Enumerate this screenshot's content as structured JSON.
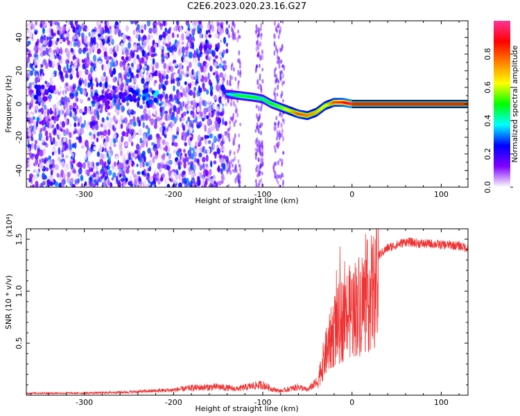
{
  "title": "C2E6.2023.020.23.16.G27",
  "chart_data": [
    {
      "type": "heatmap",
      "xlabel": "Height of straight line (km)",
      "ylabel": "Frequency (Hz)",
      "xlim": [
        -365,
        130
      ],
      "ylim": [
        -50,
        50
      ],
      "x_ticks": [
        -300,
        -200,
        -100,
        0,
        100
      ],
      "y_ticks": [
        -40,
        -20,
        0,
        20,
        40
      ],
      "colorbar": {
        "label": "Normalized spectral amplitude",
        "range": [
          0.0,
          1.0
        ],
        "ticks": [
          "0.0",
          "0.2",
          "0.4",
          "0.6",
          "0.8"
        ],
        "colors": [
          "#ffffff",
          "#8000ff",
          "#0000ff",
          "#00ffff",
          "#00ff00",
          "#ffff00",
          "#ff8000",
          "#ff0000",
          "#ff3399"
        ]
      },
      "noise_region_x": [
        -365,
        -140
      ],
      "ridge": {
        "x": [
          -140,
          -125,
          -110,
          -100,
          -90,
          -80,
          -70,
          -60,
          -50,
          -40,
          -30,
          -20,
          -10,
          0,
          130
        ],
        "y": [
          6,
          5,
          4,
          3,
          0,
          -2,
          -4,
          -6,
          -7,
          -5,
          -1,
          1,
          1,
          0,
          0
        ],
        "amplitude": [
          0.35,
          0.5,
          0.5,
          0.45,
          0.5,
          0.55,
          0.65,
          0.8,
          0.75,
          0.7,
          0.6,
          0.8,
          0.85,
          0.95,
          0.95
        ]
      },
      "grid": false
    },
    {
      "type": "line",
      "xlabel": "Height of straight line (km)",
      "ylabel": "SNR (10 * v/v)",
      "multiplier": "(x10⁴)",
      "xlim": [
        -365,
        130
      ],
      "ylim": [
        0,
        1.6
      ],
      "x_ticks": [
        -300,
        -200,
        -100,
        0,
        100
      ],
      "y_ticks": [
        "0.5",
        "1.0",
        "1.5"
      ],
      "line_color": "#ee3333",
      "series": [
        {
          "x": [
            -365,
            -300,
            -250,
            -200,
            -180,
            -150,
            -130,
            -110,
            -100,
            -90,
            -80,
            -60,
            -50,
            -40,
            -30,
            -20,
            -10,
            0,
            10,
            20,
            30,
            40,
            50,
            60,
            70,
            80,
            90,
            100,
            110,
            120,
            130
          ],
          "y": [
            0.02,
            0.02,
            0.03,
            0.05,
            0.07,
            0.08,
            0.06,
            0.09,
            0.1,
            0.06,
            0.04,
            0.08,
            0.05,
            0.12,
            0.5,
            0.8,
            0.95,
            1.05,
            1.15,
            1.25,
            1.35,
            1.42,
            1.45,
            1.48,
            1.47,
            1.46,
            1.46,
            1.45,
            1.45,
            1.44,
            1.42
          ]
        }
      ],
      "grid": false
    }
  ]
}
